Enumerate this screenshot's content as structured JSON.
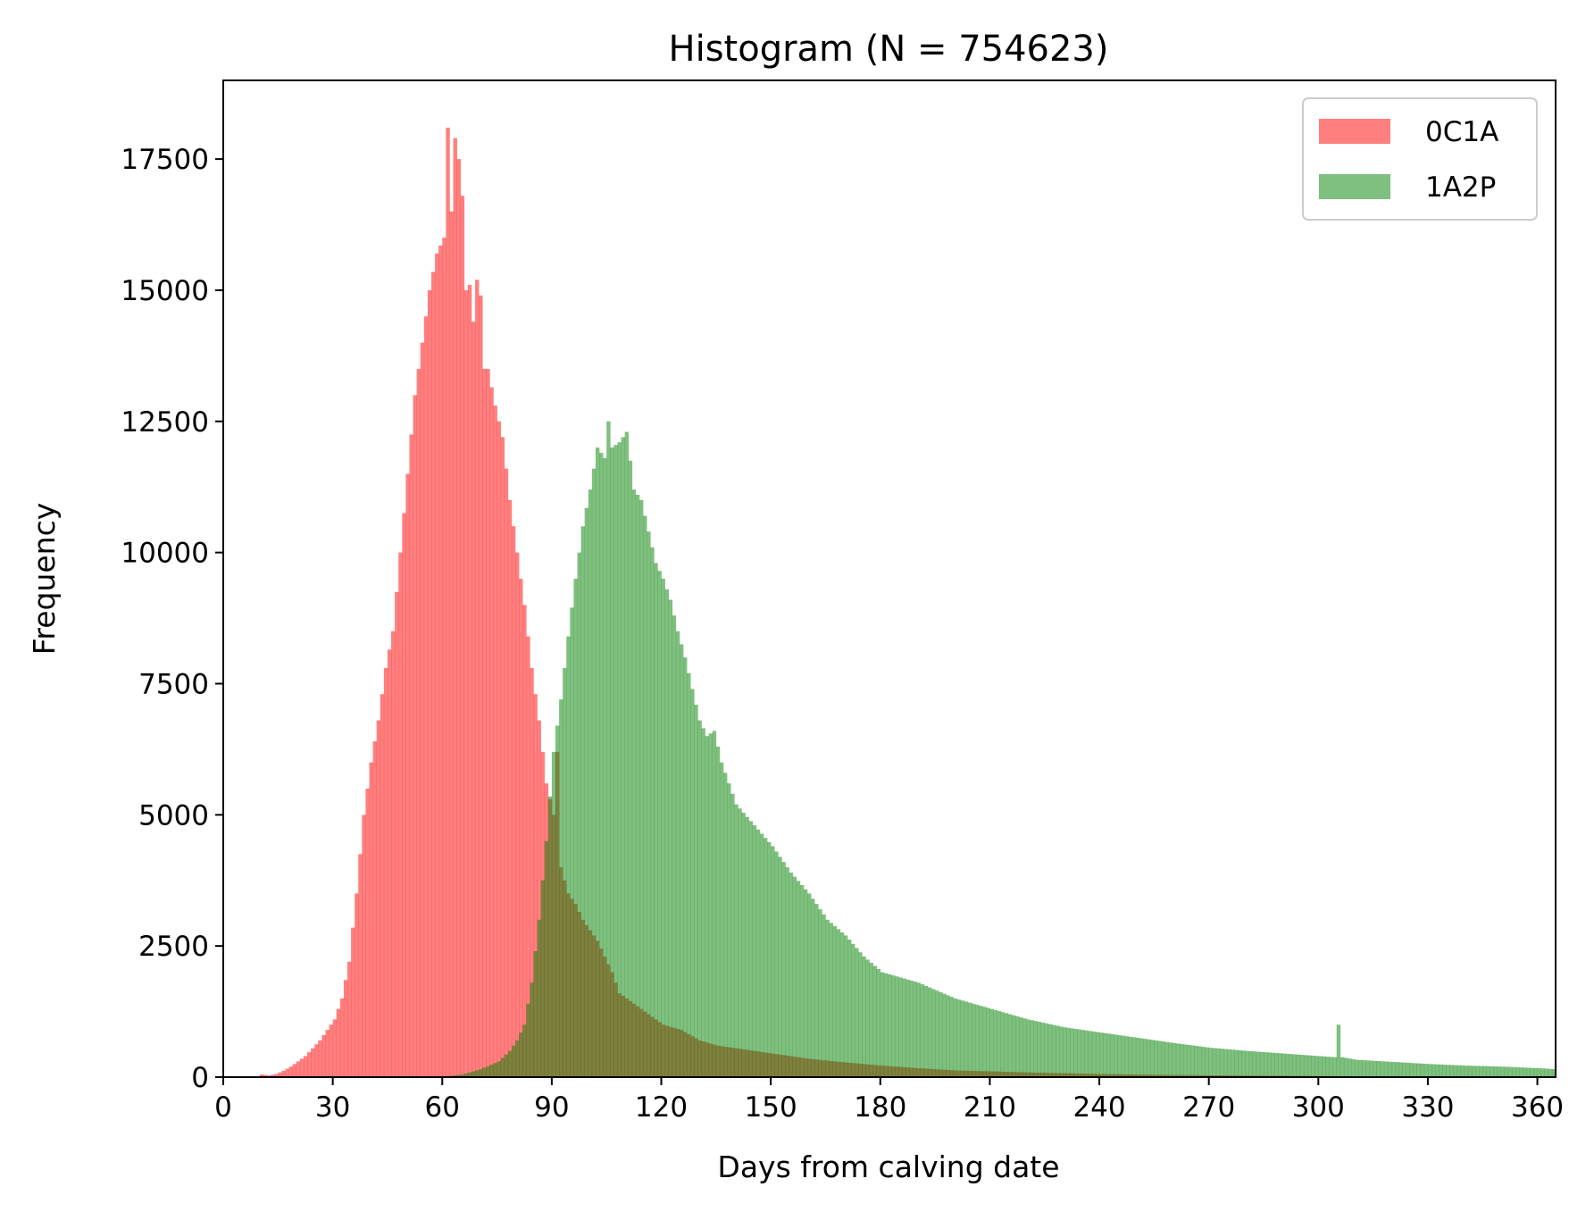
{
  "chart_data": {
    "type": "bar",
    "title": "Histogram (N = 754623)",
    "xlabel": "Days from calving date",
    "ylabel": "Frequency",
    "xlim": [
      0,
      365
    ],
    "ylim": [
      0,
      19000
    ],
    "x_ticks": [
      0,
      30,
      60,
      90,
      120,
      150,
      180,
      210,
      240,
      270,
      300,
      330,
      360
    ],
    "y_ticks": [
      0,
      2500,
      5000,
      7500,
      10000,
      12500,
      15000,
      17500
    ],
    "bin_width": 1,
    "grid": false,
    "legend_position": "top-right",
    "series": [
      {
        "name": "0C1A",
        "color": "#ff0000",
        "opacity": 0.5,
        "x": [
          10,
          12,
          14,
          16,
          18,
          20,
          22,
          24,
          26,
          28,
          30,
          32,
          34,
          36,
          38,
          40,
          42,
          44,
          46,
          48,
          50,
          52,
          54,
          56,
          58,
          60,
          61,
          62,
          63,
          64,
          65,
          66,
          67,
          68,
          69,
          70,
          71,
          72,
          74,
          76,
          78,
          80,
          82,
          84,
          86,
          88,
          90,
          91,
          92,
          94,
          96,
          98,
          100,
          102,
          104,
          106,
          108,
          110,
          112,
          114,
          116,
          118,
          120,
          125,
          130,
          135,
          140,
          150,
          160,
          170,
          180,
          190,
          200,
          220,
          240,
          260,
          280,
          300,
          320,
          340,
          365
        ],
        "values": [
          50,
          30,
          60,
          120,
          200,
          300,
          400,
          550,
          700,
          900,
          1100,
          1500,
          2200,
          3500,
          5000,
          6000,
          6800,
          7800,
          8500,
          10000,
          11500,
          13000,
          14000,
          15000,
          15700,
          16000,
          18100,
          16500,
          17900,
          17500,
          16800,
          15000,
          15100,
          14400,
          15200,
          14900,
          13500,
          13500,
          12800,
          12200,
          11000,
          10000,
          9000,
          7800,
          6800,
          5600,
          5000,
          6200,
          4000,
          3500,
          3300,
          3000,
          2800,
          2600,
          2300,
          2000,
          1600,
          1500,
          1400,
          1300,
          1200,
          1100,
          1000,
          900,
          700,
          600,
          550,
          450,
          350,
          280,
          220,
          170,
          130,
          90,
          60,
          40,
          30,
          20,
          10,
          5,
          0
        ]
      },
      {
        "name": "1A2P",
        "color": "#008000",
        "opacity": 0.5,
        "x": [
          60,
          65,
          70,
          75,
          78,
          80,
          82,
          84,
          86,
          88,
          90,
          92,
          94,
          96,
          98,
          100,
          102,
          104,
          105,
          106,
          108,
          110,
          112,
          114,
          116,
          118,
          120,
          122,
          124,
          126,
          128,
          130,
          132,
          134,
          136,
          138,
          140,
          145,
          150,
          155,
          160,
          165,
          170,
          175,
          180,
          190,
          200,
          210,
          220,
          230,
          240,
          250,
          260,
          270,
          280,
          290,
          300,
          304,
          305,
          306,
          310,
          320,
          330,
          340,
          350,
          360,
          365
        ],
        "values": [
          10,
          50,
          150,
          300,
          500,
          700,
          1000,
          1800,
          3000,
          4500,
          6200,
          7200,
          8400,
          9500,
          10500,
          11200,
          12000,
          11800,
          12500,
          12000,
          12100,
          12300,
          11200,
          11000,
          10400,
          9800,
          9500,
          9100,
          8500,
          8000,
          7400,
          6800,
          6500,
          6600,
          6000,
          5600,
          5200,
          4800,
          4400,
          3900,
          3500,
          3000,
          2700,
          2300,
          2000,
          1800,
          1500,
          1300,
          1100,
          950,
          850,
          750,
          650,
          560,
          500,
          450,
          400,
          380,
          1000,
          380,
          330,
          290,
          250,
          220,
          200,
          170,
          150
        ]
      }
    ]
  }
}
